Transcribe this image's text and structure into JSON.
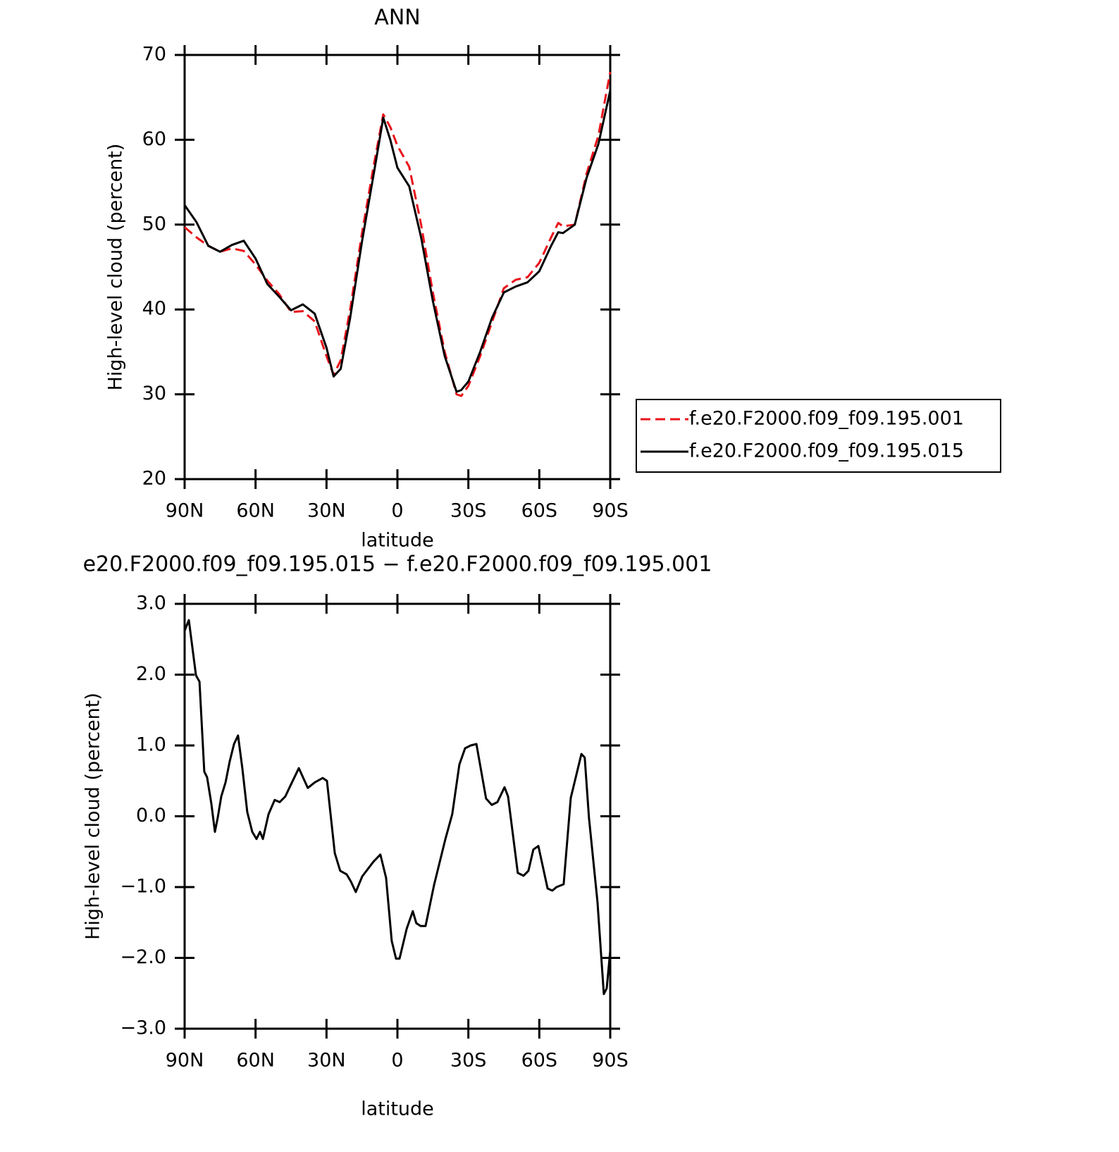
{
  "chart_data": [
    {
      "type": "line",
      "title": "ANN",
      "xlabel": "latitude",
      "ylabel": "High-level cloud (percent)",
      "xlim": [
        90,
        -90
      ],
      "xticks": [
        {
          "value": 90,
          "label": "90N"
        },
        {
          "value": 60,
          "label": "60N"
        },
        {
          "value": 30,
          "label": "30N"
        },
        0,
        {
          "value": -30,
          "label": "30S"
        },
        {
          "value": -60,
          "label": "60S"
        },
        {
          "value": -90,
          "label": "90S"
        }
      ],
      "ylim": [
        20,
        70
      ],
      "yticks": [
        20,
        30,
        40,
        50,
        60,
        70
      ],
      "legend": "right",
      "x": [
        90,
        85,
        80,
        75,
        70,
        65,
        60,
        55,
        50,
        45,
        40,
        35,
        30,
        27,
        24,
        20,
        15,
        10,
        6,
        3,
        0,
        -5,
        -10,
        -15,
        -20,
        -25,
        -27,
        -30,
        -35,
        -40,
        -45,
        -50,
        -55,
        -60,
        -65,
        -68,
        -70,
        -75,
        -80,
        -85,
        -90
      ],
      "series": [
        {
          "name": "f.e20.F2000.f09_f09.195.001",
          "color": "#e8141c",
          "line_style": "dashed",
          "values": [
            49.7,
            48.5,
            47.5,
            46.8,
            47.2,
            46.9,
            45.3,
            43.4,
            41.8,
            39.7,
            39.8,
            38.6,
            34.5,
            32.3,
            34,
            40,
            49,
            57,
            63,
            61.5,
            59.3,
            56.8,
            50,
            42,
            35,
            30,
            29.8,
            31,
            34.5,
            38.5,
            42.5,
            43.5,
            43.8,
            45.5,
            48.5,
            50.2,
            49.8,
            50,
            56,
            60.5,
            68
          ]
        },
        {
          "name": "f.e20.F2000.f09_f09.195.015",
          "color": "#000000",
          "line_style": "solid",
          "values": [
            52.3,
            50.3,
            47.5,
            46.8,
            47.6,
            48.1,
            46,
            43,
            41.5,
            39.9,
            40.6,
            39.5,
            35.5,
            32.1,
            33,
            39,
            48,
            56,
            62.6,
            60,
            56.7,
            54.5,
            48.5,
            41,
            34.5,
            30.3,
            30.5,
            31.5,
            35,
            39,
            42,
            42.7,
            43.2,
            44.5,
            47.5,
            49.1,
            49,
            50,
            55.5,
            59.5,
            65.8
          ]
        }
      ]
    },
    {
      "type": "line",
      "title": "e20.F2000.f09_f09.195.015 − f.e20.F2000.f09_f09.195.001",
      "xlabel": "latitude",
      "ylabel": "High-level cloud (percent)",
      "xlim": [
        90,
        -90
      ],
      "xticks": [
        {
          "value": 90,
          "label": "90N"
        },
        {
          "value": 60,
          "label": "60N"
        },
        {
          "value": 30,
          "label": "30N"
        },
        0,
        {
          "value": -30,
          "label": "30S"
        },
        {
          "value": -60,
          "label": "60S"
        },
        {
          "value": -90,
          "label": "90S"
        }
      ],
      "ylim": [
        -3,
        3
      ],
      "yticks": [
        {
          "value": -3,
          "label": "−3.0"
        },
        {
          "value": -2,
          "label": "−2.0"
        },
        {
          "value": -1,
          "label": "−1.0"
        },
        {
          "value": 0,
          "label": "0.0"
        },
        {
          "value": 1,
          "label": "1.0"
        },
        {
          "value": 2,
          "label": "2.0"
        },
        {
          "value": 3,
          "label": "3.0"
        }
      ],
      "color": "#000000",
      "x": [
        90,
        88.2,
        85.2,
        83.7,
        81.7,
        80.5,
        78.7,
        77.2,
        76,
        74.5,
        72.7,
        70.9,
        69.1,
        67.4,
        65.6,
        63.5,
        61.4,
        59.6,
        58.1,
        56.9,
        54.5,
        51.9,
        49.8,
        47.4,
        45.3,
        41.7,
        37.9,
        34.9,
        31.6,
        29.8,
        26.5,
        24.2,
        21.5,
        19.7,
        17.6,
        14.9,
        10.1,
        7.2,
        4.8,
        2.4,
        0.6,
        -0.9,
        -3.9,
        -6.5,
        -8,
        -9.8,
        -11.9,
        -15.5,
        -20.3,
        -23.2,
        -26.2,
        -28.6,
        -31,
        -33.4,
        -37.5,
        -39.9,
        -42.3,
        -45.3,
        -46.8,
        -50.9,
        -53.3,
        -55.4,
        -57.5,
        -59.6,
        -63.5,
        -65.5,
        -67.3,
        -70.3,
        -73.3,
        -77.8,
        -79.2,
        -81,
        -84.6,
        -87.3,
        -88.5,
        -90
      ],
      "values": [
        2.62,
        2.77,
        1.99,
        1.9,
        0.63,
        0.55,
        0.18,
        -0.22,
        -0.02,
        0.28,
        0.48,
        0.78,
        1.02,
        1.14,
        0.68,
        0.06,
        -0.22,
        -0.32,
        -0.22,
        -0.32,
        0.03,
        0.23,
        0.2,
        0.28,
        0.43,
        0.68,
        0.4,
        0.48,
        0.54,
        0.5,
        -0.52,
        -0.77,
        -0.82,
        -0.92,
        -1.07,
        -0.85,
        -0.64,
        -0.54,
        -0.87,
        -1.76,
        -2.01,
        -2.01,
        -1.59,
        -1.34,
        -1.51,
        -1.55,
        -1.55,
        -0.97,
        -0.32,
        0.03,
        0.73,
        0.96,
        1.0,
        1.02,
        0.25,
        0.16,
        0.2,
        0.41,
        0.28,
        -0.8,
        -0.84,
        -0.77,
        -0.47,
        -0.42,
        -1.02,
        -1.05,
        -1.0,
        -0.96,
        0.26,
        0.88,
        0.83,
        -0.02,
        -1.21,
        -2.51,
        -2.43,
        -1.9
      ]
    }
  ]
}
